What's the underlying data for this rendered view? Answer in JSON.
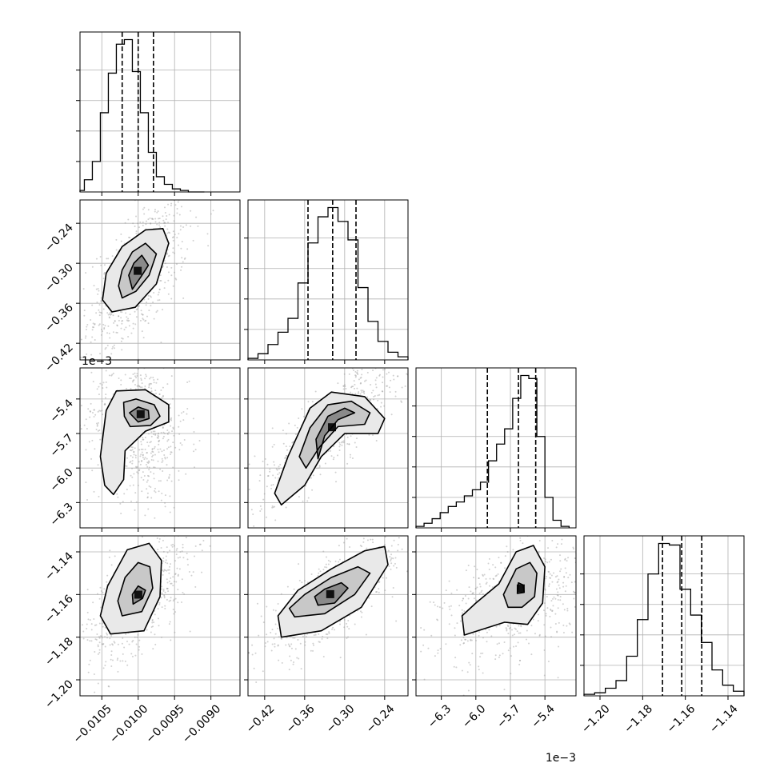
{
  "chart_data": {
    "type": "corner",
    "grid": true,
    "parameters": [
      {
        "range": [
          -0.0108,
          -0.0086
        ],
        "ticks": [
          -0.0105,
          -0.01,
          -0.0095,
          -0.009
        ],
        "tick_labels": [
          "−0.0105",
          "−0.0100",
          "−0.0095",
          "−0.0090"
        ],
        "offset_label": "",
        "quantiles": [
          -0.01022,
          -0.01,
          -0.00979
        ],
        "hist_bins": [
          -0.01085,
          -0.01074,
          -0.01063,
          -0.01052,
          -0.01041,
          -0.0103,
          -0.01019,
          -0.01008,
          -0.00997,
          -0.00986,
          -0.00975,
          -0.00964,
          -0.00953,
          -0.00942,
          -0.00931,
          -0.0092,
          -0.00909
        ],
        "hist_values": [
          0.01,
          0.08,
          0.2,
          0.52,
          0.78,
          0.97,
          1.0,
          0.79,
          0.52,
          0.26,
          0.1,
          0.05,
          0.02,
          0.01,
          0.0,
          0.0
        ]
      },
      {
        "range": [
          -0.445,
          -0.205
        ],
        "ticks": [
          -0.42,
          -0.36,
          -0.3,
          -0.24
        ],
        "tick_labels": [
          "−0.42",
          "−0.36",
          "−0.30",
          "−0.24"
        ],
        "offset_label": "",
        "quantiles": [
          -0.355,
          -0.318,
          -0.283
        ],
        "hist_bins": [
          -0.445,
          -0.43,
          -0.415,
          -0.4,
          -0.385,
          -0.37,
          -0.355,
          -0.34,
          -0.325,
          -0.31,
          -0.295,
          -0.28,
          -0.265,
          -0.25,
          -0.235,
          -0.22,
          -0.205
        ],
        "hist_values": [
          0.01,
          0.04,
          0.1,
          0.18,
          0.27,
          0.5,
          0.76,
          0.93,
          0.99,
          0.9,
          0.78,
          0.47,
          0.25,
          0.12,
          0.05,
          0.02
        ]
      },
      {
        "range": [
          -6.52,
          -5.13
        ],
        "ticks": [
          -6.3,
          -6.0,
          -5.7,
          -5.4
        ],
        "tick_labels": [
          "−6.3",
          "−6.0",
          "−5.7",
          "−5.4"
        ],
        "offset_label": "1e−3",
        "quantiles": [
          -5.9,
          -5.63,
          -5.48
        ],
        "hist_bins": [
          -6.52,
          -6.45,
          -6.38,
          -6.31,
          -6.24,
          -6.17,
          -6.1,
          -6.03,
          -5.96,
          -5.89,
          -5.82,
          -5.75,
          -5.68,
          -5.61,
          -5.54,
          -5.47,
          -5.4,
          -5.33,
          -5.26,
          -5.19
        ],
        "hist_values": [
          0.01,
          0.03,
          0.06,
          0.1,
          0.14,
          0.17,
          0.21,
          0.25,
          0.3,
          0.44,
          0.55,
          0.65,
          0.85,
          1.0,
          0.98,
          0.6,
          0.2,
          0.05,
          0.01
        ]
      },
      {
        "range": [
          -1.2075,
          -1.1325
        ],
        "ticks": [
          -1.2,
          -1.18,
          -1.16,
          -1.14
        ],
        "tick_labels": [
          "−1.20",
          "−1.18",
          "−1.16",
          "−1.14"
        ],
        "offset_label": "",
        "quantiles": [
          -1.1707,
          -1.1617,
          -1.1523
        ],
        "hist_bins": [
          -1.2075,
          -1.2025,
          -1.1975,
          -1.1925,
          -1.1875,
          -1.1825,
          -1.1775,
          -1.1725,
          -1.1675,
          -1.1625,
          -1.1575,
          -1.1525,
          -1.1475,
          -1.1425,
          -1.1375,
          -1.1325
        ],
        "hist_values": [
          0.01,
          0.02,
          0.05,
          0.1,
          0.26,
          0.5,
          0.8,
          1.0,
          0.99,
          0.7,
          0.53,
          0.35,
          0.17,
          0.07,
          0.03
        ]
      }
    ],
    "panels_2d": [
      {
        "x_param": 0,
        "y_param": 1,
        "contours": [
          [
            [
              -0.01008,
              -0.339
            ],
            [
              -0.00996,
              -0.32
            ],
            [
              -0.00986,
              -0.303
            ],
            [
              -0.00995,
              -0.288
            ],
            [
              -0.01006,
              -0.3
            ],
            [
              -0.01013,
              -0.318
            ]
          ],
          [
            [
              -0.01022,
              -0.352
            ],
            [
              -0.01003,
              -0.342
            ],
            [
              -0.00985,
              -0.318
            ],
            [
              -0.00975,
              -0.286
            ],
            [
              -0.0099,
              -0.27
            ],
            [
              -0.01008,
              -0.283
            ],
            [
              -0.01022,
              -0.31
            ],
            [
              -0.01027,
              -0.334
            ]
          ],
          [
            [
              -0.01036,
              -0.373
            ],
            [
              -0.01004,
              -0.366
            ],
            [
              -0.00975,
              -0.331
            ],
            [
              -0.00958,
              -0.27
            ],
            [
              -0.00966,
              -0.248
            ],
            [
              -0.0099,
              -0.25
            ],
            [
              -0.01022,
              -0.275
            ],
            [
              -0.01044,
              -0.315
            ],
            [
              -0.01049,
              -0.355
            ]
          ]
        ]
      },
      {
        "x_param": 0,
        "y_param": 2,
        "contours": [
          [
            [
              -0.01,
              -5.6
            ],
            [
              -0.00985,
              -5.57
            ],
            [
              -0.00986,
              -5.5
            ],
            [
              -0.01,
              -5.47
            ],
            [
              -0.01012,
              -5.52
            ]
          ],
          [
            [
              -0.01011,
              -5.64
            ],
            [
              -0.00983,
              -5.63
            ],
            [
              -0.0097,
              -5.55
            ],
            [
              -0.00978,
              -5.45
            ],
            [
              -0.01003,
              -5.4
            ],
            [
              -0.0102,
              -5.43
            ],
            [
              -0.01019,
              -5.55
            ]
          ],
          [
            [
              -0.01034,
              -6.23
            ],
            [
              -0.0102,
              -6.1
            ],
            [
              -0.01018,
              -5.85
            ],
            [
              -0.0099,
              -5.68
            ],
            [
              -0.00958,
              -5.6
            ],
            [
              -0.00958,
              -5.45
            ],
            [
              -0.0099,
              -5.32
            ],
            [
              -0.0103,
              -5.33
            ],
            [
              -0.01044,
              -5.5
            ],
            [
              -0.01052,
              -5.9
            ],
            [
              -0.01046,
              -6.15
            ]
          ]
        ]
      },
      {
        "x_param": 0,
        "y_param": 3,
        "contours": [
          [
            [
              -0.01007,
              -1.1645
            ],
            [
              -0.00994,
              -1.1618
            ],
            [
              -0.0099,
              -1.158
            ],
            [
              -0.01,
              -1.156
            ],
            [
              -0.01008,
              -1.16
            ]
          ],
          [
            [
              -0.01022,
              -1.17
            ],
            [
              -0.00995,
              -1.168
            ],
            [
              -0.0098,
              -1.157
            ],
            [
              -0.00984,
              -1.147
            ],
            [
              -0.01,
              -1.145
            ],
            [
              -0.01018,
              -1.152
            ],
            [
              -0.01028,
              -1.163
            ]
          ],
          [
            [
              -0.01038,
              -1.1785
            ],
            [
              -0.00992,
              -1.177
            ],
            [
              -0.0097,
              -1.161
            ],
            [
              -0.00968,
              -1.144
            ],
            [
              -0.00985,
              -1.136
            ],
            [
              -0.01015,
              -1.139
            ],
            [
              -0.01042,
              -1.156
            ],
            [
              -0.01052,
              -1.17
            ]
          ]
        ]
      },
      {
        "x_param": 1,
        "y_param": 2,
        "contours": [
          [
            [
              -0.34,
              -5.92
            ],
            [
              -0.33,
              -5.72
            ],
            [
              -0.31,
              -5.58
            ],
            [
              -0.285,
              -5.52
            ],
            [
              -0.3,
              -5.48
            ],
            [
              -0.325,
              -5.55
            ],
            [
              -0.343,
              -5.75
            ]
          ],
          [
            [
              -0.358,
              -6.0
            ],
            [
              -0.338,
              -5.82
            ],
            [
              -0.31,
              -5.64
            ],
            [
              -0.27,
              -5.62
            ],
            [
              -0.262,
              -5.52
            ],
            [
              -0.29,
              -5.42
            ],
            [
              -0.325,
              -5.45
            ],
            [
              -0.352,
              -5.65
            ],
            [
              -0.368,
              -5.9
            ]
          ],
          [
            [
              -0.395,
              -6.32
            ],
            [
              -0.36,
              -6.15
            ],
            [
              -0.335,
              -5.9
            ],
            [
              -0.3,
              -5.7
            ],
            [
              -0.25,
              -5.7
            ],
            [
              -0.24,
              -5.57
            ],
            [
              -0.27,
              -5.38
            ],
            [
              -0.32,
              -5.34
            ],
            [
              -0.352,
              -5.48
            ],
            [
              -0.385,
              -5.9
            ],
            [
              -0.405,
              -6.22
            ]
          ]
        ]
      },
      {
        "x_param": 1,
        "y_param": 3,
        "contours": [
          [
            [
              -0.34,
              -1.165
            ],
            [
              -0.315,
              -1.164
            ],
            [
              -0.295,
              -1.157
            ],
            [
              -0.305,
              -1.1545
            ],
            [
              -0.33,
              -1.1575
            ],
            [
              -0.345,
              -1.161
            ]
          ],
          [
            [
              -0.375,
              -1.1705
            ],
            [
              -0.33,
              -1.169
            ],
            [
              -0.285,
              -1.16
            ],
            [
              -0.262,
              -1.15
            ],
            [
              -0.28,
              -1.147
            ],
            [
              -0.32,
              -1.152
            ],
            [
              -0.36,
              -1.16
            ],
            [
              -0.383,
              -1.1665
            ]
          ],
          [
            [
              -0.395,
              -1.18
            ],
            [
              -0.335,
              -1.177
            ],
            [
              -0.275,
              -1.166
            ],
            [
              -0.235,
              -1.146
            ],
            [
              -0.24,
              -1.1375
            ],
            [
              -0.27,
              -1.1395
            ],
            [
              -0.32,
              -1.148
            ],
            [
              -0.37,
              -1.158
            ],
            [
              -0.4,
              -1.17
            ]
          ]
        ]
      },
      {
        "x_param": 2,
        "y_param": 3,
        "contours": [
          [
            [
              -5.64,
              -1.1595
            ],
            [
              -5.58,
              -1.159
            ],
            [
              -5.59,
              -1.1555
            ],
            [
              -5.63,
              -1.1545
            ]
          ],
          [
            [
              -5.72,
              -1.166
            ],
            [
              -5.6,
              -1.166
            ],
            [
              -5.49,
              -1.161
            ],
            [
              -5.47,
              -1.15
            ],
            [
              -5.53,
              -1.145
            ],
            [
              -5.65,
              -1.148
            ],
            [
              -5.76,
              -1.16
            ]
          ],
          [
            [
              -6.1,
              -1.179
            ],
            [
              -5.75,
              -1.173
            ],
            [
              -5.55,
              -1.174
            ],
            [
              -5.42,
              -1.164
            ],
            [
              -5.4,
              -1.147
            ],
            [
              -5.5,
              -1.137
            ],
            [
              -5.65,
              -1.14
            ],
            [
              -5.8,
              -1.155
            ],
            [
              -6.0,
              -1.164
            ],
            [
              -6.12,
              -1.17
            ]
          ]
        ]
      }
    ]
  }
}
